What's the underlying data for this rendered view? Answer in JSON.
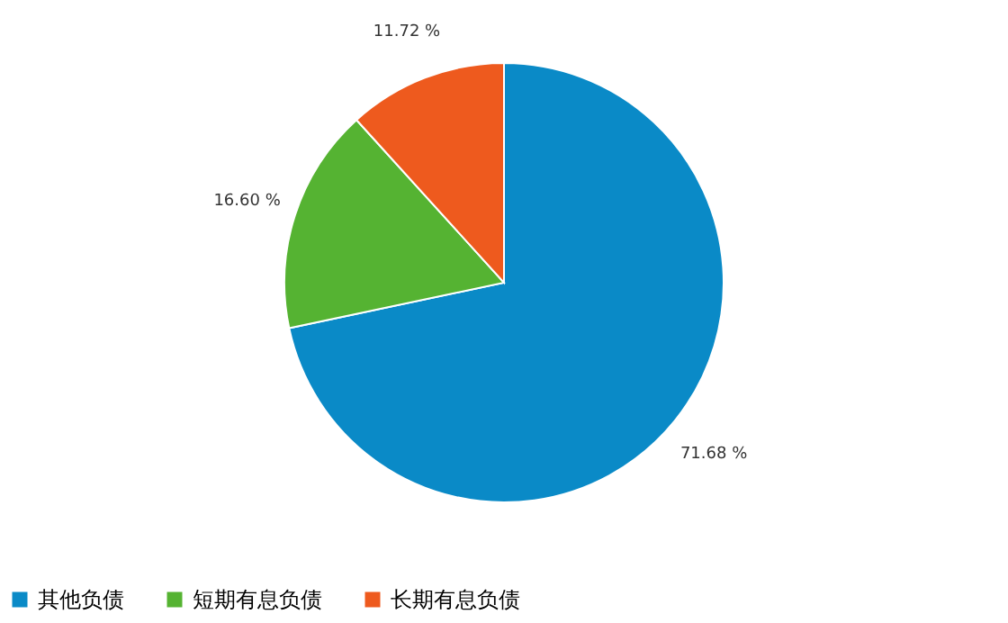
{
  "chart_data": {
    "type": "pie",
    "categories": [
      "其他负债",
      "短期有息负债",
      "长期有息负债"
    ],
    "values": [
      71.68,
      16.6,
      11.72
    ],
    "colors": [
      "#0a8ac7",
      "#55b332",
      "#ee5a1e"
    ],
    "value_labels": [
      "71.68 %",
      "16.60 %",
      "11.72 %"
    ],
    "legend": "bottom"
  }
}
